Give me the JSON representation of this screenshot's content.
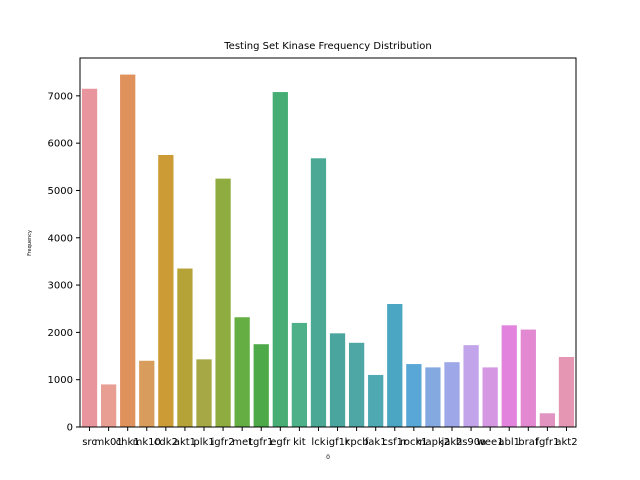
{
  "chart_data": {
    "type": "bar",
    "title": "Testing Set Kinase Frequency Distribution",
    "xlabel": "0",
    "ylabel": "Frequency",
    "ylim": [
      0,
      7800
    ],
    "yticks": [
      0,
      1000,
      2000,
      3000,
      4000,
      5000,
      6000,
      7000
    ],
    "grid": false,
    "legend": "none",
    "categories": [
      "src",
      "mk01",
      "chk1",
      "mk10",
      "cdk2",
      "akt1",
      "plk1",
      "igfr2",
      "met",
      "tgfr1",
      "egfr",
      "kit",
      "lck",
      "igf1r",
      "kpcb",
      "fak1",
      "csf1r",
      "rock1",
      "mapk2",
      "jak2",
      "hs90a",
      "wee1",
      "abl1",
      "braf",
      "fgfr1",
      "akt2"
    ],
    "values": [
      7150,
      900,
      7450,
      1400,
      5750,
      3350,
      1430,
      5250,
      2320,
      1750,
      7080,
      2200,
      5680,
      1980,
      1780,
      1100,
      2600,
      1330,
      1260,
      1370,
      1730,
      1260,
      2150,
      2060,
      290,
      1480
    ],
    "colors": [
      "#e8959e",
      "#e99e93",
      "#e0925c",
      "#d89c5c",
      "#cc9b35",
      "#b6a338",
      "#a5a845",
      "#8fac41",
      "#65ae43",
      "#4eaa49",
      "#46ae74",
      "#4eb088",
      "#4aa895",
      "#4aa59e",
      "#4ea6a5",
      "#4ea9b3",
      "#4aa6c2",
      "#58a7d6",
      "#84a9e0",
      "#9ea8e8",
      "#c1a4ea",
      "#d697e2",
      "#e284dd",
      "#e289d1",
      "#e294c0",
      "#e596b3"
    ]
  }
}
